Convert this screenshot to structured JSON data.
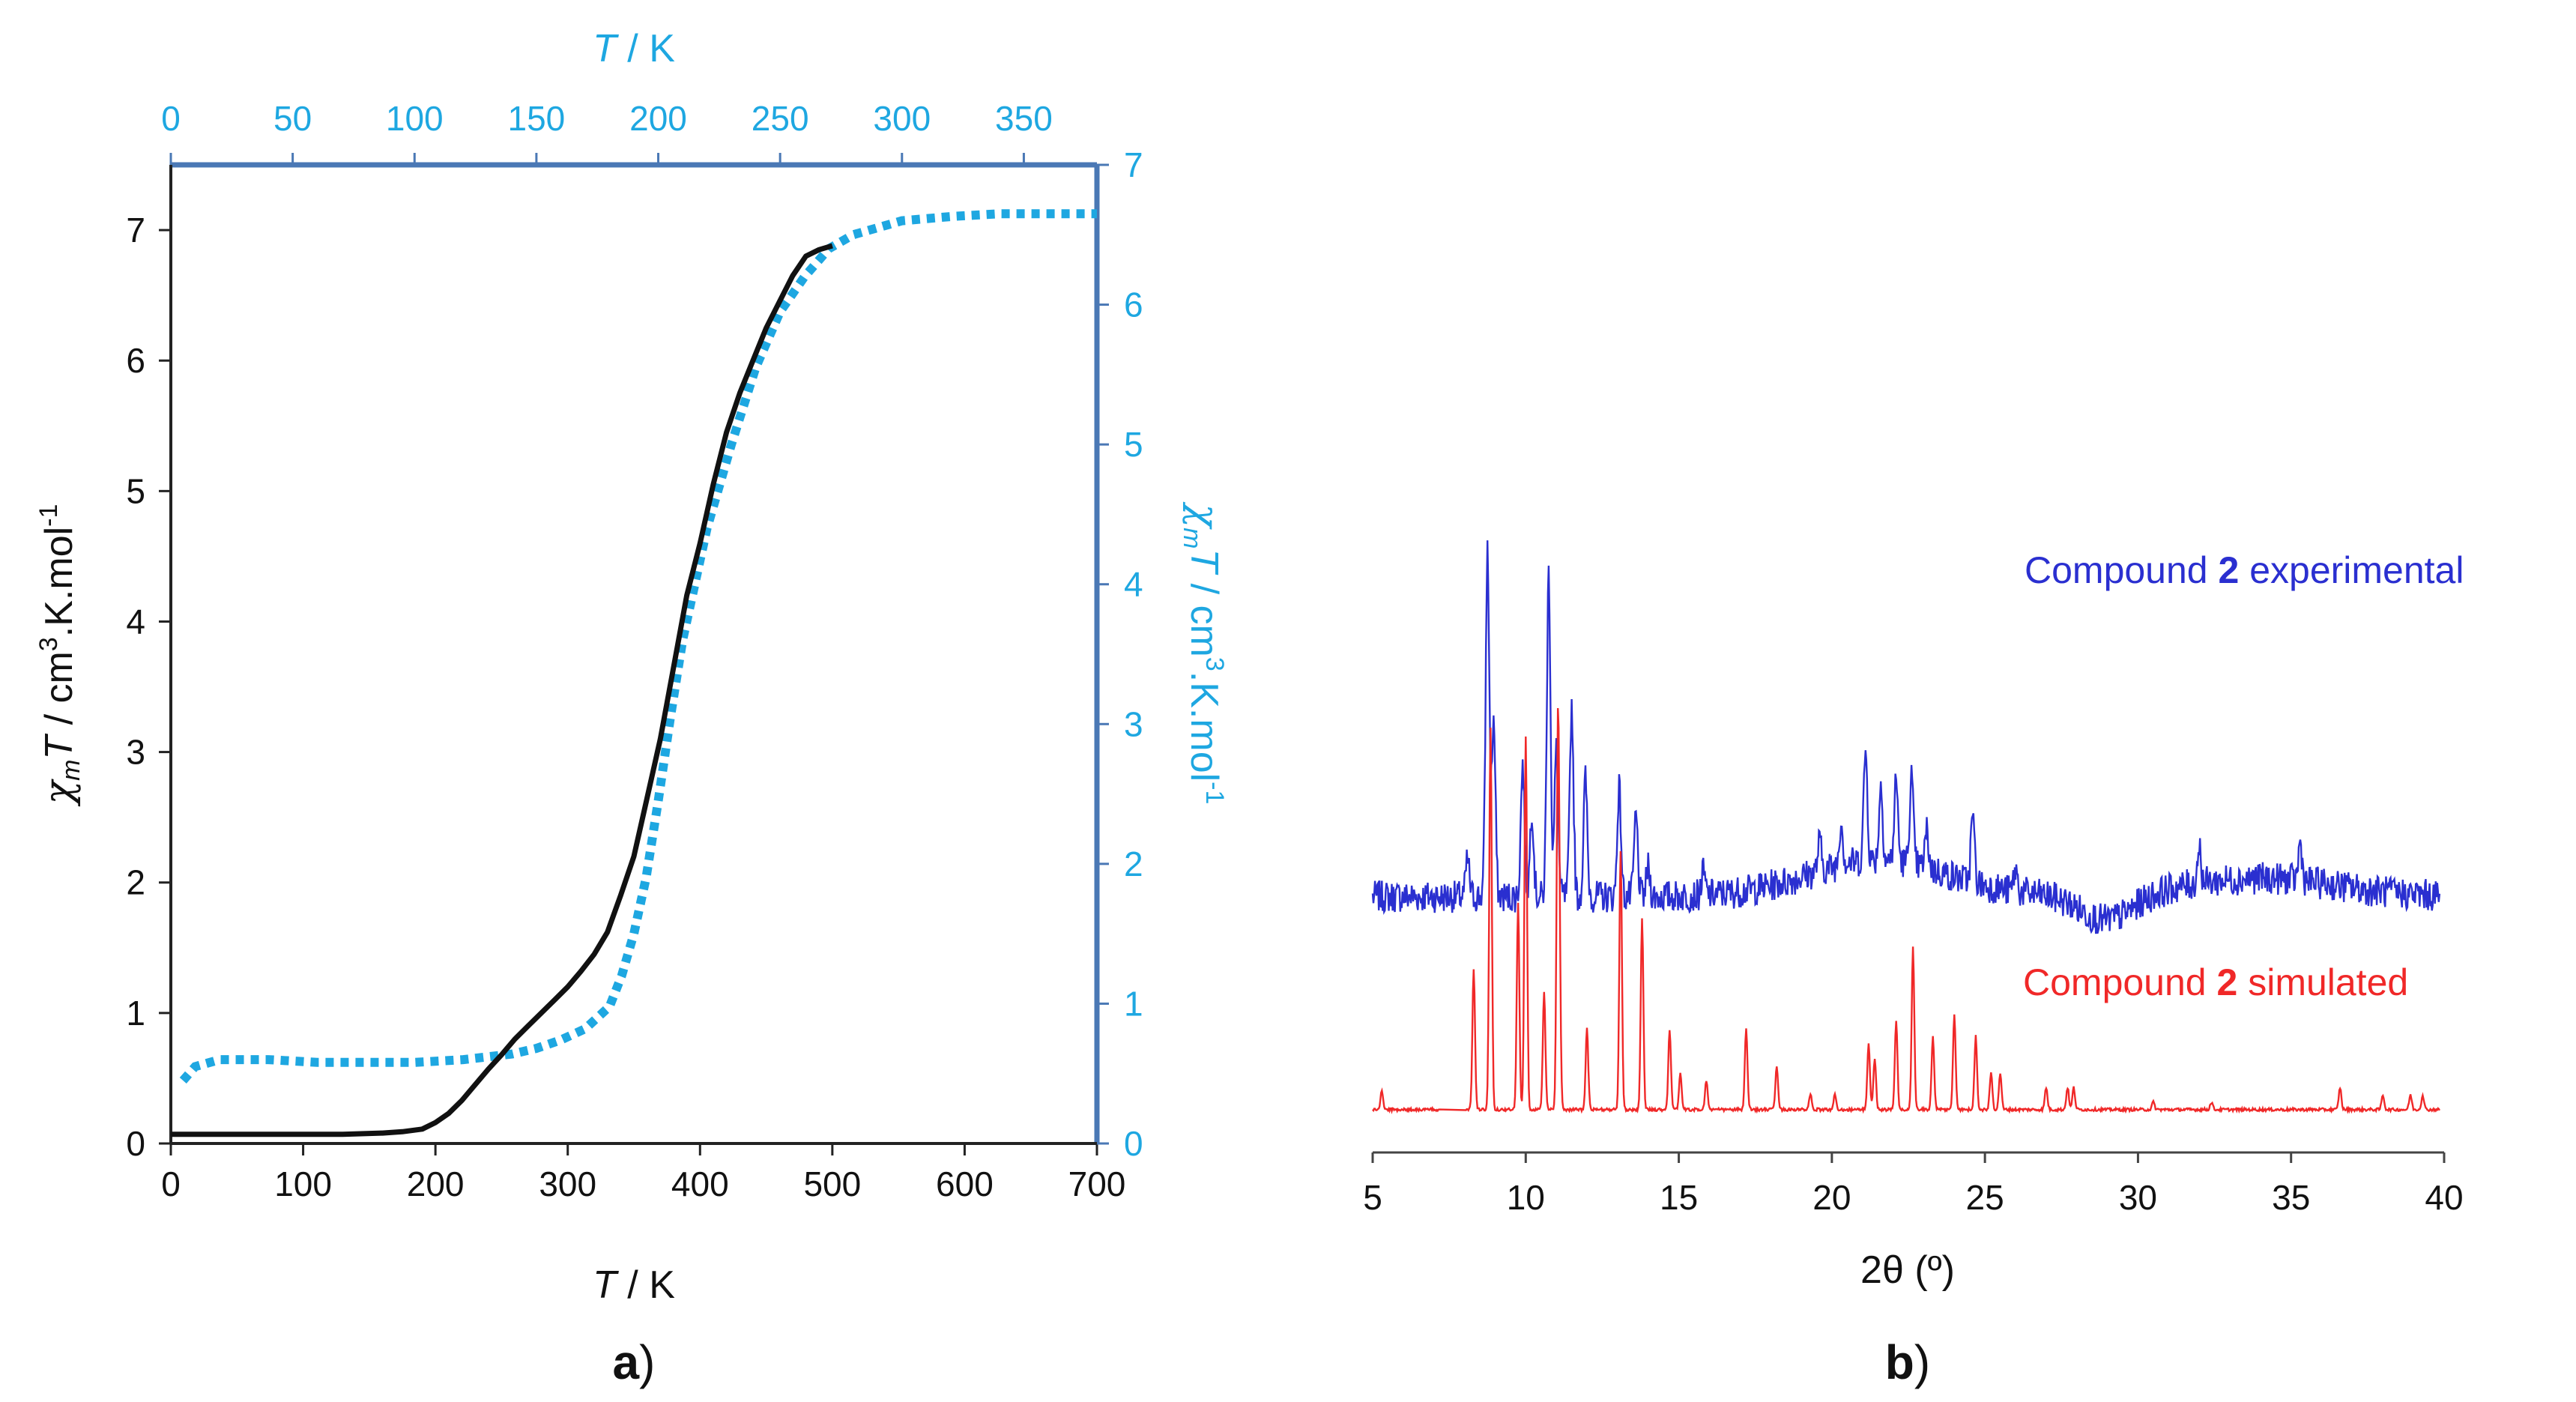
{
  "chart_data": [
    {
      "panel": "a",
      "type": "line",
      "panel_label": "a",
      "bottom_axis": {
        "label": "T",
        "unit": " / K",
        "ticks": [
          "0",
          "100",
          "200",
          "300",
          "400",
          "500",
          "600",
          "700"
        ],
        "range": [
          0,
          700
        ]
      },
      "top_axis": {
        "label": "T",
        "unit": " / K",
        "ticks": [
          "0",
          "50",
          "100",
          "150",
          "200",
          "250",
          "300",
          "350"
        ],
        "range": [
          0,
          380
        ]
      },
      "left_axis": {
        "label_sym": "χ",
        "label_sub": "m",
        "label_T": "T",
        "label_rest": " / cm",
        "label_sup": "3",
        "label_rest2": ".K.mol",
        "label_sup2": "-1",
        "ticks": [
          "0",
          "1",
          "2",
          "3",
          "4",
          "5",
          "6",
          "7"
        ],
        "range": [
          0,
          7.5
        ]
      },
      "right_axis": {
        "label_sym": "χ",
        "label_sub": "m",
        "label_T": "T",
        "label_rest": " / cm",
        "label_sup": "3",
        "label_rest2": ".K.mol",
        "label_sup2": "-1",
        "ticks": [
          "0",
          "1",
          "2",
          "3",
          "4",
          "5",
          "6",
          "7"
        ],
        "range": [
          0,
          7
        ]
      },
      "colors": {
        "black_series": "#111111",
        "blue_series": "#1ea7e1",
        "frame": "#4a78b5"
      },
      "series": [
        {
          "name": "black (bottom/left axes)",
          "axes": "bottom-left",
          "x": [
            0,
            50,
            100,
            130,
            160,
            175,
            190,
            200,
            210,
            220,
            230,
            240,
            250,
            260,
            270,
            280,
            290,
            300,
            310,
            320,
            330,
            340,
            350,
            360,
            370,
            380,
            390,
            400,
            410,
            420,
            430,
            440,
            450,
            460,
            470,
            480,
            490,
            500
          ],
          "y": [
            0.07,
            0.07,
            0.07,
            0.07,
            0.08,
            0.09,
            0.11,
            0.16,
            0.23,
            0.33,
            0.45,
            0.57,
            0.68,
            0.8,
            0.9,
            1.0,
            1.1,
            1.2,
            1.32,
            1.45,
            1.62,
            1.9,
            2.2,
            2.65,
            3.1,
            3.65,
            4.2,
            4.6,
            5.05,
            5.45,
            5.75,
            6.0,
            6.25,
            6.45,
            6.65,
            6.8,
            6.85,
            6.88
          ]
        },
        {
          "name": "blue dotted (top/right axes)",
          "axes": "top-right",
          "x": [
            5,
            10,
            20,
            40,
            60,
            80,
            100,
            120,
            140,
            150,
            160,
            170,
            180,
            185,
            190,
            195,
            200,
            205,
            210,
            220,
            230,
            240,
            250,
            260,
            270,
            280,
            300,
            320,
            340,
            360,
            380
          ],
          "y": [
            0.45,
            0.55,
            0.6,
            0.6,
            0.58,
            0.58,
            0.58,
            0.6,
            0.64,
            0.68,
            0.74,
            0.82,
            0.98,
            1.2,
            1.5,
            1.9,
            2.45,
            3.05,
            3.6,
            4.4,
            5.0,
            5.55,
            5.95,
            6.2,
            6.4,
            6.5,
            6.6,
            6.63,
            6.65,
            6.65,
            6.65
          ]
        }
      ]
    },
    {
      "panel": "b",
      "type": "line",
      "panel_label": "b",
      "x_axis": {
        "label": "2θ (º)",
        "ticks": [
          "5",
          "10",
          "15",
          "20",
          "25",
          "30",
          "35",
          "40"
        ],
        "range": [
          5,
          40
        ]
      },
      "legend": {
        "experimental": {
          "pre": "Compound ",
          "bold": "2",
          "post": " experimental"
        },
        "simulated": {
          "pre": "Compound ",
          "bold": "2",
          "post": " simulated"
        }
      },
      "colors": {
        "experimental": "#2a2fd0",
        "simulated": "#f02828"
      },
      "series": [
        {
          "name": "Compound 2 experimental",
          "baseline": 3.3,
          "noise": 0.22,
          "peaks": [
            {
              "x": 8.1,
              "h": 0.5
            },
            {
              "x": 8.75,
              "h": 4.7
            },
            {
              "x": 8.95,
              "h": 2.4
            },
            {
              "x": 9.9,
              "h": 1.8
            },
            {
              "x": 10.2,
              "h": 1.2
            },
            {
              "x": 10.75,
              "h": 4.4
            },
            {
              "x": 11.0,
              "h": 2.0
            },
            {
              "x": 11.5,
              "h": 2.6
            },
            {
              "x": 11.95,
              "h": 1.6
            },
            {
              "x": 13.05,
              "h": 1.5
            },
            {
              "x": 13.6,
              "h": 1.1
            },
            {
              "x": 14.0,
              "h": 0.4
            },
            {
              "x": 15.8,
              "h": 0.3
            },
            {
              "x": 19.6,
              "h": 0.4
            },
            {
              "x": 20.3,
              "h": 0.6
            },
            {
              "x": 21.1,
              "h": 1.5
            },
            {
              "x": 21.6,
              "h": 1.0
            },
            {
              "x": 22.1,
              "h": 1.1
            },
            {
              "x": 22.6,
              "h": 1.2
            },
            {
              "x": 23.1,
              "h": 0.5
            },
            {
              "x": 24.6,
              "h": 0.9
            },
            {
              "x": 26.0,
              "h": 0.3
            },
            {
              "x": 32.0,
              "h": 0.5
            },
            {
              "x": 35.3,
              "h": 0.5
            }
          ]
        },
        {
          "name": "Compound 2 simulated",
          "baseline": 0.4,
          "noise": 0.02,
          "peaks": [
            {
              "x": 5.3,
              "h": 0.25
            },
            {
              "x": 8.3,
              "h": 1.9
            },
            {
              "x": 8.85,
              "h": 5.2
            },
            {
              "x": 9.75,
              "h": 2.8
            },
            {
              "x": 10.0,
              "h": 5.1
            },
            {
              "x": 10.6,
              "h": 1.6
            },
            {
              "x": 11.05,
              "h": 4.7
            },
            {
              "x": 11.1,
              "h": 1.5
            },
            {
              "x": 12.0,
              "h": 1.1
            },
            {
              "x": 13.1,
              "h": 3.5
            },
            {
              "x": 13.8,
              "h": 2.6
            },
            {
              "x": 14.7,
              "h": 1.1
            },
            {
              "x": 15.05,
              "h": 0.5
            },
            {
              "x": 15.9,
              "h": 0.4
            },
            {
              "x": 17.2,
              "h": 1.1
            },
            {
              "x": 18.2,
              "h": 0.6
            },
            {
              "x": 19.3,
              "h": 0.2
            },
            {
              "x": 20.1,
              "h": 0.2
            },
            {
              "x": 21.2,
              "h": 0.9
            },
            {
              "x": 21.4,
              "h": 0.7
            },
            {
              "x": 22.1,
              "h": 1.2
            },
            {
              "x": 22.65,
              "h": 2.2
            },
            {
              "x": 23.3,
              "h": 1.0
            },
            {
              "x": 24.0,
              "h": 1.3
            },
            {
              "x": 24.7,
              "h": 1.0
            },
            {
              "x": 25.2,
              "h": 0.5
            },
            {
              "x": 25.5,
              "h": 0.5
            },
            {
              "x": 27.0,
              "h": 0.3
            },
            {
              "x": 27.7,
              "h": 0.3
            },
            {
              "x": 27.9,
              "h": 0.3
            },
            {
              "x": 30.5,
              "h": 0.1
            },
            {
              "x": 32.4,
              "h": 0.1
            },
            {
              "x": 36.6,
              "h": 0.3
            },
            {
              "x": 38.0,
              "h": 0.2
            },
            {
              "x": 38.9,
              "h": 0.2
            },
            {
              "x": 39.3,
              "h": 0.2
            }
          ]
        }
      ]
    }
  ]
}
